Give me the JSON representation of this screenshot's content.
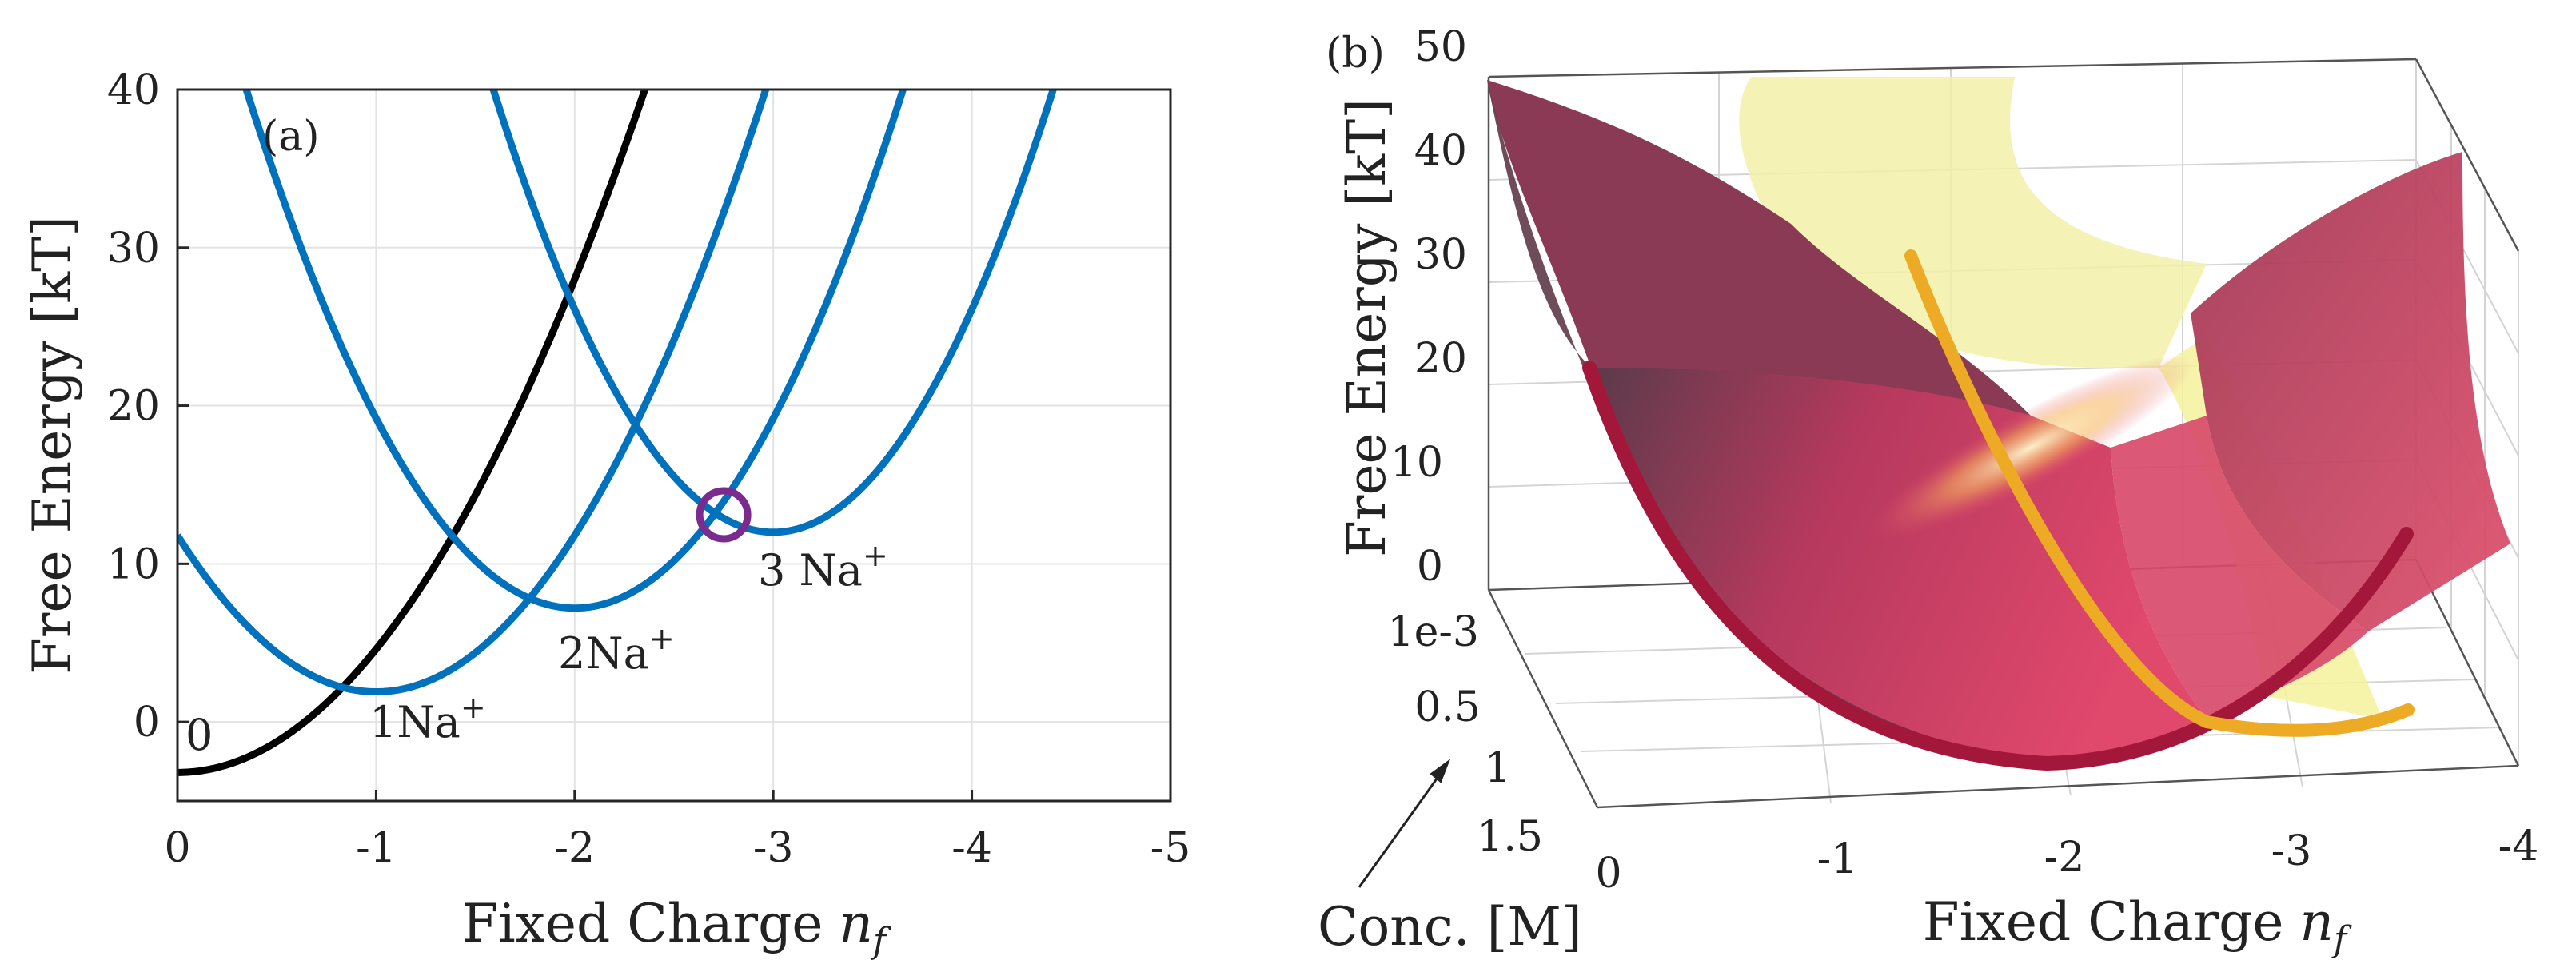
{
  "chart_data": [
    {
      "panel": "(a)",
      "type": "line",
      "title": "",
      "xlabel": "Fixed Charge",
      "xlabel_var": "n",
      "xlabel_sub": "f",
      "ylabel": "Free Energy [kT]",
      "xlim": [
        0,
        -5
      ],
      "ylim": [
        -5,
        40
      ],
      "x_ticks": [
        0,
        -1,
        -2,
        -3,
        -4,
        -5
      ],
      "y_ticks": [
        0,
        10,
        20,
        30,
        40
      ],
      "grid": true,
      "series": [
        {
          "name": "0",
          "color": "#000000",
          "center": 0,
          "min": -3.2,
          "curvature": 7.8
        },
        {
          "name": "1Na+",
          "color": "#0072BD",
          "center": -1,
          "min": 1.9,
          "curvature": 9.9
        },
        {
          "name": "2Na+",
          "color": "#0072BD",
          "center": -2,
          "min": 7.2,
          "curvature": 12.0
        },
        {
          "name": "3 Na+",
          "color": "#0072BD",
          "center": -3,
          "min": 12.0,
          "curvature": 14.1
        }
      ],
      "series_labels": [
        {
          "series": "0",
          "base": "0",
          "sup": ""
        },
        {
          "series": "1Na+",
          "base": "1Na",
          "sup": "+"
        },
        {
          "series": "2Na+",
          "base": "2Na",
          "sup": "+"
        },
        {
          "series": "3 Na+",
          "base": "3 Na",
          "sup": "+"
        }
      ],
      "marker": {
        "type": "circle",
        "x": -2.75,
        "y": 13.1,
        "color": "#7B2A8E"
      }
    },
    {
      "panel": "(b)",
      "type": "surface",
      "title": "",
      "xlabel": "Fixed Charge",
      "xlabel_var": "n",
      "xlabel_sub": "f",
      "ylabel": "Conc. [M]",
      "zlabel": "Free Energy [kT]",
      "x_ticks": [
        "0",
        "-1",
        "-2",
        "-3",
        "-4"
      ],
      "y_ticks": [
        "1e-3",
        "0.5",
        "1",
        "1.5"
      ],
      "z_ticks": [
        "0",
        "10",
        "20",
        "30",
        "40",
        "50"
      ],
      "surfaces": [
        {
          "name": "surface-crimson",
          "color": "#C8345A"
        },
        {
          "name": "surface-yellow",
          "color": "#F4F29C"
        }
      ],
      "edge_curves": [
        {
          "name": "crimson-edge",
          "color": "#A3173A"
        },
        {
          "name": "orange-edge",
          "color": "#EDAA25"
        }
      ]
    }
  ]
}
